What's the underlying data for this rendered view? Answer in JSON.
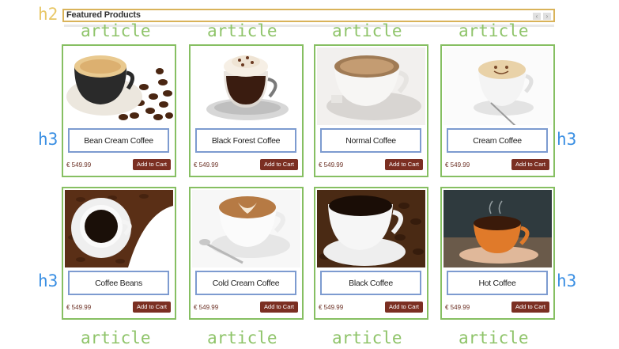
{
  "section_title": "Featured Products",
  "nav": {
    "prev_icon": "chevron-left-icon",
    "next_icon": "chevron-right-icon",
    "prev_glyph": "‹",
    "next_glyph": "›"
  },
  "tags": {
    "article": "article",
    "h3": "h3",
    "h2": "h2"
  },
  "products": [
    {
      "name": "Bean Cream Coffee",
      "price": "€ 549.99",
      "cart_label": "Add to Cart"
    },
    {
      "name": "Black Forest Coffee",
      "price": "€ 549.99",
      "cart_label": "Add to Cart"
    },
    {
      "name": "Normal Coffee",
      "price": "€ 549.99",
      "cart_label": "Add to Cart"
    },
    {
      "name": "Cream Coffee",
      "price": "€ 549.99",
      "cart_label": "Add to Cart"
    },
    {
      "name": "Coffee Beans",
      "price": "€ 549.99",
      "cart_label": "Add to Cart"
    },
    {
      "name": "Cold Cream Coffee",
      "price": "€ 549.99",
      "cart_label": "Add to Cart"
    },
    {
      "name": "Black Coffee",
      "price": "€ 549.99",
      "cart_label": "Add to Cart"
    },
    {
      "name": "Hot Coffee",
      "price": "€ 549.99",
      "cart_label": "Add to Cart"
    }
  ],
  "colors": {
    "article_outline": "#86bf62",
    "h3_outline": "#7d9bd0",
    "h2_outline": "#d9b35a",
    "cart_button": "#7b2f22"
  }
}
